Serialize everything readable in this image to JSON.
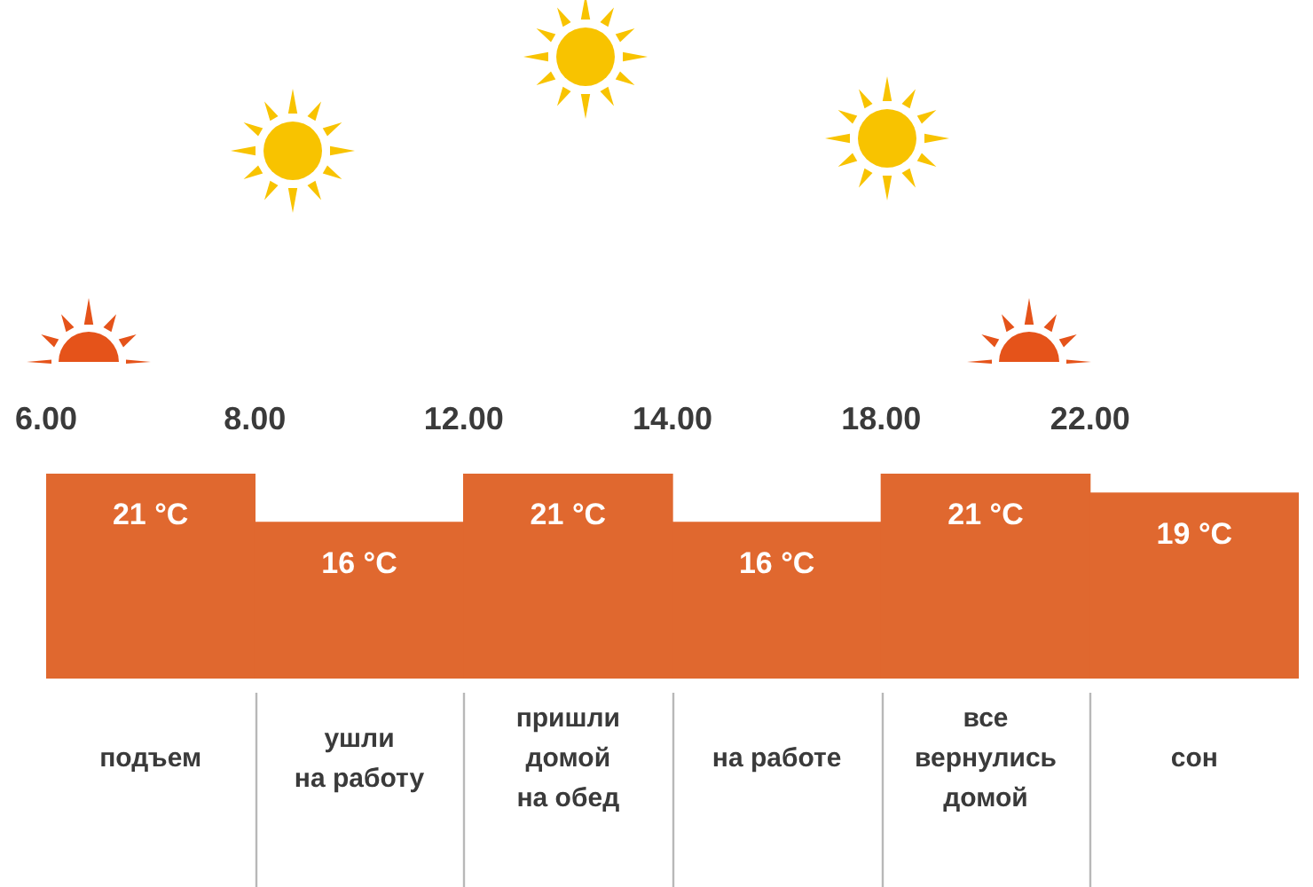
{
  "chart_data": {
    "type": "bar",
    "categories": [
      "подъем",
      "ушли на работу",
      "пришли домой на обед",
      "на работе",
      "все вернулись домой",
      "сон"
    ],
    "values": [
      21,
      16,
      21,
      16,
      21,
      19
    ],
    "color": "#e0682f",
    "value_labels": [
      "21 °C",
      "16 °C",
      "21 °C",
      "16 °C",
      "21 °C",
      "19 °C"
    ],
    "tick_labels": "x",
    "grid": false,
    "annotations": [
      "6.00",
      "8.00",
      "12.00",
      "14.00",
      "18.00",
      "22.00"
    ]
  }
}
